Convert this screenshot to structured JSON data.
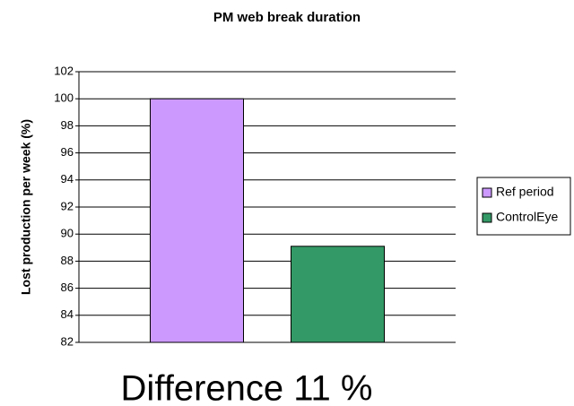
{
  "chart_data": {
    "type": "bar",
    "title": "PM web break duration",
    "y_label": "Lost production per week (%)",
    "annotation": "Difference 11 %",
    "categories": [
      null
    ],
    "series": [
      {
        "name": "Ref period",
        "color": "#cc99ff",
        "values": [
          100
        ]
      },
      {
        "name": "ControlEye",
        "color": "#339966",
        "values": [
          89.1
        ]
      }
    ],
    "ylim": [
      82,
      102
    ],
    "yticks": [
      82,
      84,
      86,
      88,
      90,
      92,
      94,
      96,
      98,
      100,
      102
    ],
    "grid": true,
    "legend": "right"
  }
}
